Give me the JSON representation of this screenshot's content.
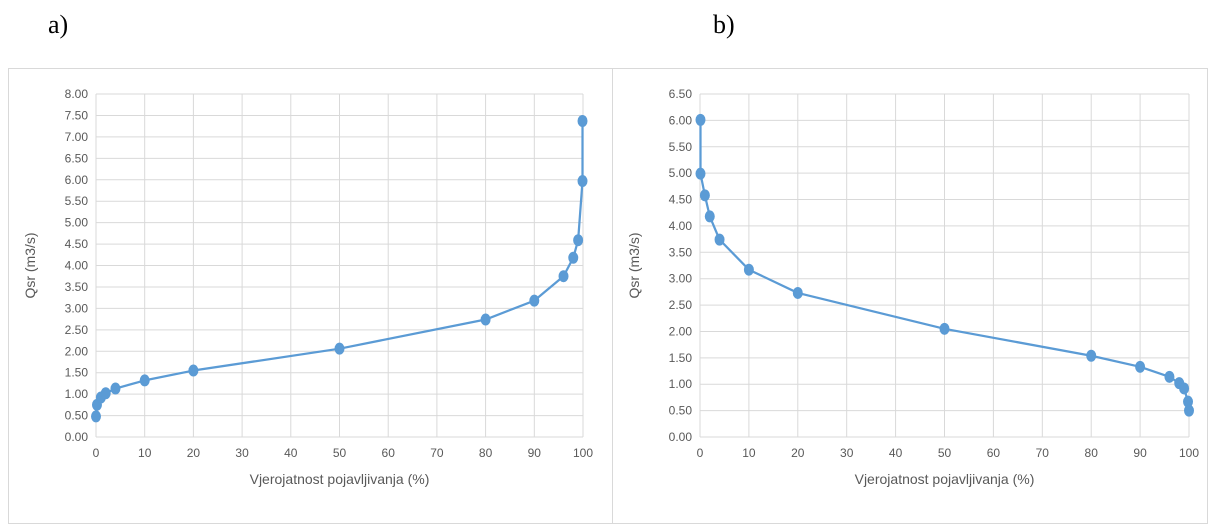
{
  "panels": [
    {
      "label": "a)"
    },
    {
      "label": "b)"
    }
  ],
  "colors": {
    "series": "#5b9bd5",
    "grid": "#d9d9d9",
    "text": "#595959"
  },
  "chart_data": [
    {
      "type": "line",
      "title": "",
      "xlabel": "Vjerojatnost pojavljivanja (%)",
      "ylabel": "Qsr (m3/s)",
      "xlim": [
        0,
        100
      ],
      "ylim": [
        0,
        8
      ],
      "x_ticks": [
        "0",
        "10",
        "20",
        "30",
        "40",
        "50",
        "60",
        "70",
        "80",
        "90",
        "100"
      ],
      "y_ticks": [
        "0.00",
        "0.50",
        "1.00",
        "1.50",
        "2.00",
        "2.50",
        "3.00",
        "3.50",
        "4.00",
        "4.50",
        "5.00",
        "5.50",
        "6.00",
        "6.50",
        "7.00",
        "7.50",
        "8.00"
      ],
      "grid": true,
      "series": [
        {
          "x": [
            0,
            0.2,
            1,
            2,
            4,
            10,
            20,
            50,
            80,
            90,
            96,
            98,
            99,
            99.9,
            99.9
          ],
          "y": [
            0.48,
            0.75,
            0.92,
            1.02,
            1.13,
            1.32,
            1.55,
            2.06,
            2.74,
            3.18,
            3.75,
            4.18,
            4.59,
            5.97,
            7.37
          ]
        }
      ]
    },
    {
      "type": "line",
      "title": "",
      "xlabel": "Vjerojatnost pojavljivanja (%)",
      "ylabel": "Qsr (m3/s)",
      "xlim": [
        0,
        100
      ],
      "ylim": [
        0,
        6.5
      ],
      "x_ticks": [
        "0",
        "10",
        "20",
        "30",
        "40",
        "50",
        "60",
        "70",
        "80",
        "90",
        "100"
      ],
      "y_ticks": [
        "0.00",
        "0.50",
        "1.00",
        "1.50",
        "2.00",
        "2.50",
        "3.00",
        "3.50",
        "4.00",
        "4.50",
        "5.00",
        "5.50",
        "6.00",
        "6.50"
      ],
      "grid": true,
      "series": [
        {
          "x": [
            0.1,
            0.1,
            1,
            2,
            4,
            10,
            20,
            50,
            80,
            90,
            96,
            98,
            99,
            99.8,
            100
          ],
          "y": [
            6.01,
            4.99,
            4.58,
            4.18,
            3.74,
            3.17,
            2.73,
            2.05,
            1.54,
            1.33,
            1.14,
            1.02,
            0.92,
            0.67,
            0.5
          ]
        }
      ]
    }
  ]
}
